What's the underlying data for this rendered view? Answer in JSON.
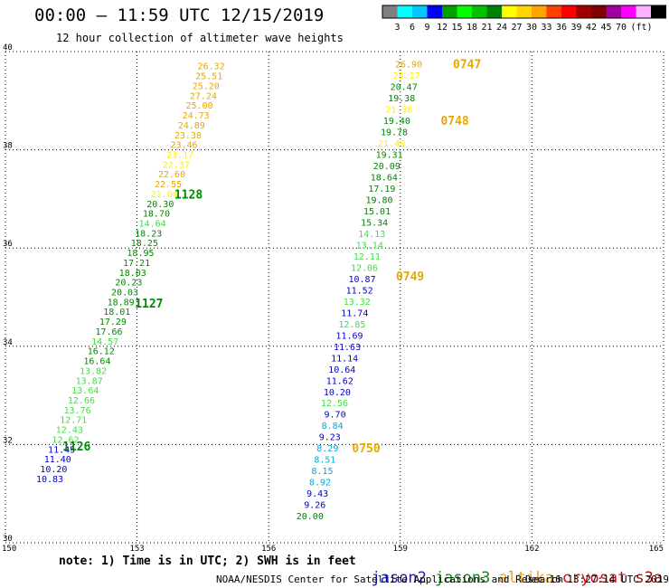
{
  "header": {
    "title": "00:00 – 11:59 UTC 12/15/2019",
    "subtitle": "12 hour collection of altimeter wave heights"
  },
  "scale": {
    "colors": [
      "#808080",
      "#00ffff",
      "#00c8ff",
      "#0000ff",
      "#00a000",
      "#00ff00",
      "#00c000",
      "#008000",
      "#ffff00",
      "#ffd700",
      "#ffa500",
      "#ff4000",
      "#ff0000",
      "#a00000",
      "#800000",
      "#a000a0",
      "#ff00ff",
      "#ffb0ff",
      "#000000"
    ],
    "labels": [
      "3",
      "6",
      "9",
      "12",
      "15",
      "18",
      "21",
      "24",
      "27",
      "30",
      "33",
      "36",
      "39",
      "42",
      "45",
      "70"
    ],
    "unit": "(ft)"
  },
  "footer": {
    "note": "note: 1) Time is in UTC; 2) SWH is in feet",
    "credit": "NOAA/NESDIS Center for Satellite Applications and Research",
    "timestamp": "Dec 16 13:27:14 UTC 2019"
  },
  "satellites": [
    {
      "name": "jason2",
      "color": "#1a1acc"
    },
    {
      "name": "jason3",
      "color": "#118811"
    },
    {
      "name": "altika",
      "color": "#f0a020"
    },
    {
      "name": "cryosat",
      "color": "#d01010"
    },
    {
      "name": "s3a",
      "color": "#a01010"
    }
  ],
  "chart_data": {
    "type": "scatter",
    "xlim": [
      150,
      165
    ],
    "ylim": [
      30,
      40
    ],
    "xticks": [
      "150",
      "153",
      "156",
      "159",
      "162",
      "165"
    ],
    "yticks": [
      "30",
      "32",
      "34",
      "36",
      "38",
      "40"
    ],
    "grid": true,
    "palette": {
      "yellow": "#ffee00",
      "gold": "#e6a800",
      "green": "#008800",
      "lightgreen": "#44dd44",
      "blue": "#0000cc",
      "cyan": "#00aadd"
    },
    "points": [
      {
        "x": 155.0,
        "y": 39.71,
        "v": "26.32",
        "c": "gold"
      },
      {
        "x": 154.95,
        "y": 39.51,
        "v": "25.51",
        "c": "gold"
      },
      {
        "x": 154.88,
        "y": 39.31,
        "v": "25.20",
        "c": "gold"
      },
      {
        "x": 154.82,
        "y": 39.11,
        "v": "27.24",
        "c": "gold"
      },
      {
        "x": 154.73,
        "y": 38.91,
        "v": "25.00",
        "c": "gold"
      },
      {
        "x": 154.65,
        "y": 38.71,
        "v": "24.73",
        "c": "gold"
      },
      {
        "x": 154.55,
        "y": 38.51,
        "v": "24.89",
        "c": "gold"
      },
      {
        "x": 154.47,
        "y": 38.31,
        "v": "23.38",
        "c": "gold"
      },
      {
        "x": 154.38,
        "y": 38.11,
        "v": "23.46",
        "c": "gold"
      },
      {
        "x": 154.29,
        "y": 37.91,
        "v": "23.17",
        "c": "yellow"
      },
      {
        "x": 154.2,
        "y": 37.71,
        "v": "22.37",
        "c": "yellow"
      },
      {
        "x": 154.1,
        "y": 37.51,
        "v": "22.60",
        "c": "gold"
      },
      {
        "x": 154.02,
        "y": 37.31,
        "v": "22.55",
        "c": "gold"
      },
      {
        "x": 153.93,
        "y": 37.11,
        "v": "21.04",
        "c": "yellow"
      },
      {
        "x": 153.84,
        "y": 36.91,
        "v": "20.30",
        "c": "green"
      },
      {
        "x": 153.75,
        "y": 36.71,
        "v": "18.70",
        "c": "green"
      },
      {
        "x": 153.66,
        "y": 36.51,
        "v": "14.64",
        "c": "lightgreen"
      },
      {
        "x": 153.57,
        "y": 36.31,
        "v": "18.23",
        "c": "green"
      },
      {
        "x": 153.48,
        "y": 36.11,
        "v": "18.25",
        "c": "green"
      },
      {
        "x": 153.39,
        "y": 35.91,
        "v": "18.95",
        "c": "green"
      },
      {
        "x": 153.3,
        "y": 35.71,
        "v": "17.21",
        "c": "green"
      },
      {
        "x": 153.21,
        "y": 35.51,
        "v": "18.03",
        "c": "green"
      },
      {
        "x": 153.12,
        "y": 35.31,
        "v": "20.23",
        "c": "green"
      },
      {
        "x": 153.03,
        "y": 35.11,
        "v": "20.03",
        "c": "green"
      },
      {
        "x": 152.94,
        "y": 34.91,
        "v": "18.89",
        "c": "green"
      },
      {
        "x": 152.85,
        "y": 34.71,
        "v": "18.01",
        "c": "green"
      },
      {
        "x": 152.76,
        "y": 34.51,
        "v": "17.29",
        "c": "green"
      },
      {
        "x": 152.67,
        "y": 34.31,
        "v": "17.66",
        "c": "green"
      },
      {
        "x": 152.58,
        "y": 34.11,
        "v": "14.57",
        "c": "lightgreen"
      },
      {
        "x": 152.49,
        "y": 33.91,
        "v": "16.12",
        "c": "green"
      },
      {
        "x": 152.4,
        "y": 33.71,
        "v": "16.64",
        "c": "green"
      },
      {
        "x": 152.31,
        "y": 33.51,
        "v": "13.82",
        "c": "lightgreen"
      },
      {
        "x": 152.22,
        "y": 33.31,
        "v": "13.87",
        "c": "lightgreen"
      },
      {
        "x": 152.13,
        "y": 33.11,
        "v": "13.64",
        "c": "lightgreen"
      },
      {
        "x": 152.04,
        "y": 32.91,
        "v": "12.66",
        "c": "lightgreen"
      },
      {
        "x": 151.95,
        "y": 32.71,
        "v": "13.76",
        "c": "lightgreen"
      },
      {
        "x": 151.86,
        "y": 32.51,
        "v": "12.71",
        "c": "lightgreen"
      },
      {
        "x": 151.77,
        "y": 32.31,
        "v": "12.43",
        "c": "lightgreen"
      },
      {
        "x": 151.68,
        "y": 32.11,
        "v": "12.62",
        "c": "lightgreen"
      },
      {
        "x": 151.59,
        "y": 31.91,
        "v": "11.45",
        "c": "blue"
      },
      {
        "x": 151.5,
        "y": 31.71,
        "v": "11.40",
        "c": "blue"
      },
      {
        "x": 151.41,
        "y": 31.51,
        "v": "10.20",
        "c": "blue"
      },
      {
        "x": 151.32,
        "y": 31.31,
        "v": "10.83",
        "c": "blue"
      },
      {
        "x": 159.5,
        "y": 39.75,
        "v": "26.90",
        "c": "gold"
      },
      {
        "x": 159.45,
        "y": 39.52,
        "v": "23.17",
        "c": "yellow"
      },
      {
        "x": 159.39,
        "y": 39.29,
        "v": "20.47",
        "c": "green"
      },
      {
        "x": 159.34,
        "y": 39.06,
        "v": "19.38",
        "c": "green"
      },
      {
        "x": 159.28,
        "y": 38.83,
        "v": "21.38",
        "c": "yellow"
      },
      {
        "x": 159.23,
        "y": 38.6,
        "v": "19.40",
        "c": "green"
      },
      {
        "x": 159.17,
        "y": 38.37,
        "v": "19.78",
        "c": "green"
      },
      {
        "x": 159.11,
        "y": 38.14,
        "v": "21.49",
        "c": "yellow"
      },
      {
        "x": 159.06,
        "y": 37.91,
        "v": "19.31",
        "c": "green"
      },
      {
        "x": 159.0,
        "y": 37.68,
        "v": "20.09",
        "c": "green"
      },
      {
        "x": 158.94,
        "y": 37.45,
        "v": "18.64",
        "c": "green"
      },
      {
        "x": 158.89,
        "y": 37.22,
        "v": "17.19",
        "c": "green"
      },
      {
        "x": 158.83,
        "y": 36.99,
        "v": "19.80",
        "c": "green"
      },
      {
        "x": 158.78,
        "y": 36.76,
        "v": "15.01",
        "c": "green"
      },
      {
        "x": 158.72,
        "y": 36.53,
        "v": "15.34",
        "c": "green"
      },
      {
        "x": 158.66,
        "y": 36.3,
        "v": "14.13",
        "c": "lightgreen"
      },
      {
        "x": 158.61,
        "y": 36.07,
        "v": "13.14",
        "c": "lightgreen"
      },
      {
        "x": 158.55,
        "y": 35.84,
        "v": "12.11",
        "c": "lightgreen"
      },
      {
        "x": 158.49,
        "y": 35.61,
        "v": "12.06",
        "c": "lightgreen"
      },
      {
        "x": 158.44,
        "y": 35.38,
        "v": "10.87",
        "c": "blue"
      },
      {
        "x": 158.38,
        "y": 35.15,
        "v": "11.52",
        "c": "blue"
      },
      {
        "x": 158.32,
        "y": 34.92,
        "v": "13.32",
        "c": "lightgreen"
      },
      {
        "x": 158.27,
        "y": 34.69,
        "v": "11.74",
        "c": "blue"
      },
      {
        "x": 158.21,
        "y": 34.46,
        "v": "12.85",
        "c": "lightgreen"
      },
      {
        "x": 158.15,
        "y": 34.23,
        "v": "11.69",
        "c": "blue"
      },
      {
        "x": 158.1,
        "y": 34.0,
        "v": "11.63",
        "c": "blue"
      },
      {
        "x": 158.04,
        "y": 33.77,
        "v": "11.14",
        "c": "blue"
      },
      {
        "x": 157.98,
        "y": 33.54,
        "v": "10.64",
        "c": "blue"
      },
      {
        "x": 157.93,
        "y": 33.31,
        "v": "11.62",
        "c": "blue"
      },
      {
        "x": 157.87,
        "y": 33.08,
        "v": "10.20",
        "c": "blue"
      },
      {
        "x": 157.81,
        "y": 32.85,
        "v": "12.56",
        "c": "lightgreen"
      },
      {
        "x": 157.76,
        "y": 32.62,
        "v": "9.70",
        "c": "blue"
      },
      {
        "x": 157.7,
        "y": 32.39,
        "v": "8.84",
        "c": "cyan"
      },
      {
        "x": 157.64,
        "y": 32.16,
        "v": "9.23",
        "c": "blue"
      },
      {
        "x": 157.59,
        "y": 31.93,
        "v": "8.29",
        "c": "cyan"
      },
      {
        "x": 157.53,
        "y": 31.7,
        "v": "8.51",
        "c": "cyan"
      },
      {
        "x": 157.47,
        "y": 31.47,
        "v": "8.15",
        "c": "cyan"
      },
      {
        "x": 157.42,
        "y": 31.24,
        "v": "8.92",
        "c": "cyan"
      },
      {
        "x": 157.36,
        "y": 31.01,
        "v": "9.43",
        "c": "blue"
      },
      {
        "x": 157.3,
        "y": 30.78,
        "v": "9.26",
        "c": "blue"
      },
      {
        "x": 157.25,
        "y": 30.55,
        "v": "20.00",
        "c": "green"
      }
    ],
    "time_labels": [
      {
        "x": 153.85,
        "y": 37.1,
        "t": "1128",
        "c": "green"
      },
      {
        "x": 152.95,
        "y": 34.88,
        "t": "1127",
        "c": "green"
      },
      {
        "x": 151.3,
        "y": 31.97,
        "t": "1126",
        "c": "green"
      },
      {
        "x": 160.2,
        "y": 39.75,
        "t": "0747",
        "c": "gold"
      },
      {
        "x": 159.92,
        "y": 38.6,
        "t": "0748",
        "c": "gold"
      },
      {
        "x": 158.9,
        "y": 35.43,
        "t": "0749",
        "c": "gold"
      },
      {
        "x": 157.9,
        "y": 31.93,
        "t": "0750",
        "c": "gold"
      }
    ]
  }
}
